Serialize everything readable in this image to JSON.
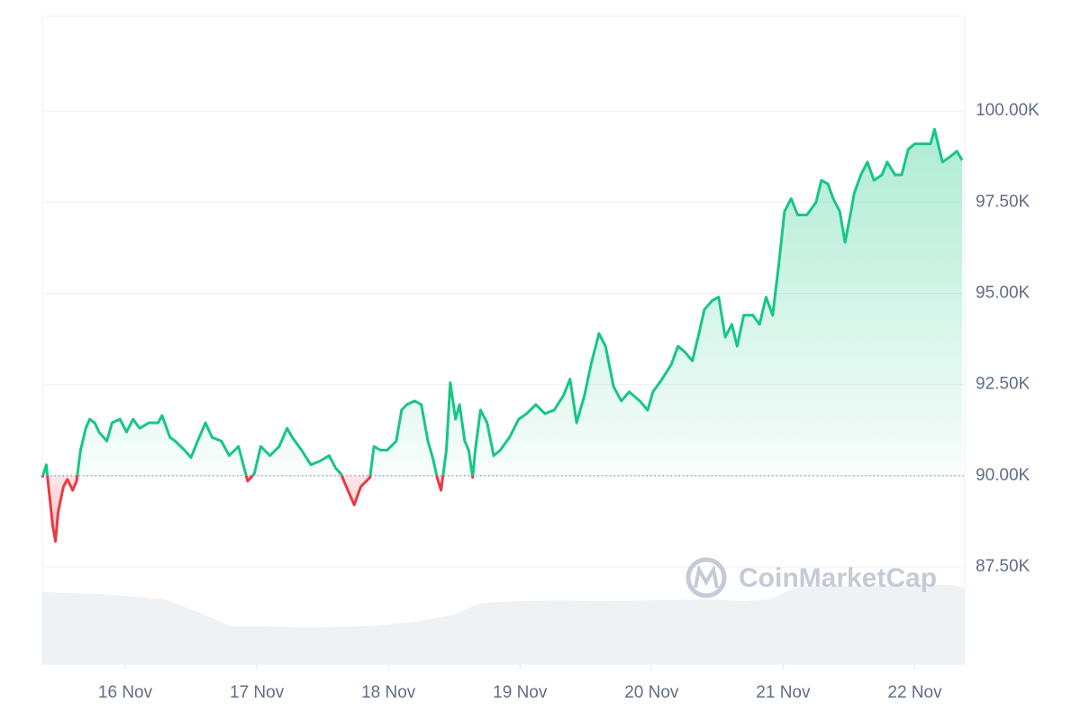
{
  "chart_data": {
    "type": "line",
    "x": [
      15.37,
      15.4,
      15.42,
      15.45,
      15.47,
      15.49,
      15.53,
      15.56,
      15.6,
      15.63,
      15.66,
      15.7,
      15.73,
      15.77,
      15.8,
      15.86,
      15.9,
      15.96,
      16.01,
      16.06,
      16.11,
      16.18,
      16.25,
      16.28,
      16.34,
      16.38,
      16.45,
      16.5,
      16.55,
      16.61,
      16.66,
      16.73,
      16.79,
      16.86,
      16.93,
      16.98,
      17.03,
      17.1,
      17.17,
      17.23,
      17.27,
      17.34,
      17.41,
      17.48,
      17.55,
      17.6,
      17.64,
      17.68,
      17.74,
      17.79,
      17.86,
      17.89,
      17.94,
      17.99,
      18.06,
      18.1,
      18.14,
      18.2,
      18.25,
      18.3,
      18.34,
      18.37,
      18.4,
      18.44,
      18.47,
      18.51,
      18.54,
      18.58,
      18.61,
      18.64,
      18.66,
      18.7,
      18.75,
      18.8,
      18.85,
      18.92,
      18.99,
      19.05,
      19.12,
      19.19,
      19.26,
      19.33,
      19.38,
      19.43,
      19.49,
      19.54,
      19.6,
      19.65,
      19.71,
      19.77,
      19.83,
      19.91,
      19.97,
      20.01,
      20.08,
      20.15,
      20.2,
      20.25,
      20.31,
      20.36,
      20.4,
      20.46,
      20.51,
      20.56,
      20.61,
      20.65,
      20.7,
      20.77,
      20.82,
      20.87,
      20.92,
      20.97,
      21.01,
      21.06,
      21.11,
      21.18,
      21.25,
      21.29,
      21.34,
      21.38,
      21.43,
      21.47,
      21.51,
      21.54,
      21.59,
      21.64,
      21.69,
      21.75,
      21.79,
      21.85,
      21.9,
      21.95,
      22.0,
      22.07,
      22.12,
      22.15,
      22.21,
      22.27,
      22.32,
      22.36
    ],
    "values": [
      89950,
      90300,
      89600,
      88600,
      88200,
      89000,
      89700,
      89900,
      89600,
      89850,
      90700,
      91300,
      91550,
      91440,
      91200,
      90950,
      91450,
      91550,
      91200,
      91550,
      91300,
      91450,
      91450,
      91650,
      91050,
      90950,
      90700,
      90500,
      90950,
      91450,
      91050,
      90950,
      90550,
      90800,
      89850,
      90050,
      90800,
      90550,
      90800,
      91300,
      91050,
      90700,
      90300,
      90400,
      90550,
      90200,
      90050,
      89700,
      89200,
      89700,
      89950,
      90800,
      90700,
      90700,
      90950,
      91800,
      91950,
      92050,
      91950,
      90950,
      90450,
      89950,
      89600,
      90700,
      92550,
      91550,
      91950,
      90950,
      90700,
      89950,
      90700,
      91800,
      91450,
      90550,
      90700,
      91050,
      91550,
      91700,
      91950,
      91700,
      91800,
      92200,
      92650,
      91450,
      92200,
      93050,
      93900,
      93550,
      92450,
      92050,
      92300,
      92050,
      91800,
      92300,
      92650,
      93050,
      93550,
      93400,
      93150,
      93900,
      94550,
      94800,
      94900,
      93800,
      94150,
      93550,
      94400,
      94400,
      94150,
      94900,
      94400,
      95900,
      97250,
      97600,
      97150,
      97150,
      97500,
      98100,
      98000,
      97600,
      97250,
      96400,
      97150,
      97750,
      98250,
      98600,
      98100,
      98250,
      98600,
      98250,
      98250,
      98950,
      99100,
      99100,
      99100,
      99500,
      98600,
      98750,
      98900,
      98650
    ],
    "baseline": 90000,
    "up_color": "#16c784",
    "down_color": "#ea3943",
    "xlim": [
      15.37,
      22.38
    ],
    "xticks": [
      {
        "value": 16,
        "label": "16 Nov"
      },
      {
        "value": 17,
        "label": "17 Nov"
      },
      {
        "value": 18,
        "label": "18 Nov"
      },
      {
        "value": 19,
        "label": "19 Nov"
      },
      {
        "value": 20,
        "label": "20 Nov"
      },
      {
        "value": 21,
        "label": "21 Nov"
      },
      {
        "value": 22,
        "label": "22 Nov"
      }
    ],
    "ylim": [
      84830,
      102600
    ],
    "yticks": [
      {
        "value": 87500,
        "label": "87.50K"
      },
      {
        "value": 90000,
        "label": "90.00K"
      },
      {
        "value": 92500,
        "label": "92.50K"
      },
      {
        "value": 95000,
        "label": "95.00K"
      },
      {
        "value": 97500,
        "label": "97.50K"
      },
      {
        "value": 100000,
        "label": "100.00K"
      }
    ],
    "grid": true,
    "volume": {
      "color": "#eff2f5",
      "y2lim": [
        0,
        100
      ],
      "x": [
        15.37,
        15.6,
        15.8,
        16.0,
        16.3,
        16.6,
        16.8,
        17.0,
        17.4,
        17.8,
        18.2,
        18.5,
        18.7,
        19.0,
        19.3,
        19.6,
        20.0,
        20.4,
        20.7,
        20.9,
        21.1,
        21.5,
        22.0,
        22.3,
        22.38
      ],
      "values": [
        80,
        79,
        78,
        76,
        72,
        55,
        42,
        42,
        41,
        42,
        47,
        55,
        68,
        70,
        71,
        70,
        71,
        72,
        70,
        72,
        86,
        87,
        88,
        88,
        85
      ]
    },
    "watermark": "CoinMarketCap"
  }
}
